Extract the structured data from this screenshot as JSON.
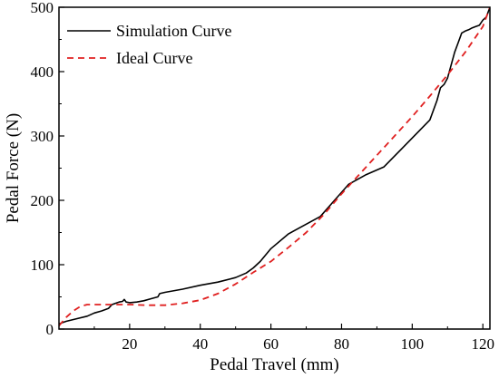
{
  "chart_data": {
    "type": "line",
    "title": "",
    "xlabel": "Pedal Travel (mm)",
    "ylabel": "Pedal Force (N)",
    "xlim": [
      0,
      122
    ],
    "ylim": [
      0,
      500
    ],
    "xticks": [
      20,
      40,
      60,
      80,
      100,
      120
    ],
    "yticks": [
      0,
      100,
      200,
      300,
      400,
      500
    ],
    "grid": false,
    "legend_position": "top-left",
    "series": [
      {
        "name": "Simulation Curve",
        "color": "#000000",
        "style": "solid",
        "x": [
          0,
          2,
          5,
          8,
          10,
          12,
          14,
          15,
          17,
          18,
          18.5,
          19,
          20,
          22,
          24,
          26,
          28,
          28.5,
          30,
          35,
          40,
          45,
          50,
          53,
          55,
          57,
          60,
          65,
          70,
          74,
          78,
          82,
          87,
          92,
          97,
          102,
          105,
          107,
          108,
          109,
          110,
          111,
          112,
          113,
          114,
          115,
          116,
          117,
          118,
          119,
          120,
          121,
          122
        ],
        "y": [
          8,
          12,
          16,
          20,
          25,
          28,
          32,
          38,
          42,
          43,
          46,
          42,
          41,
          42,
          44,
          47,
          50,
          55,
          57,
          62,
          68,
          73,
          80,
          87,
          95,
          105,
          125,
          148,
          163,
          175,
          200,
          225,
          240,
          252,
          280,
          308,
          325,
          355,
          375,
          380,
          390,
          410,
          430,
          445,
          460,
          463,
          465,
          468,
          470,
          472,
          480,
          485,
          500
        ]
      },
      {
        "name": "Ideal Curve",
        "color": "#e02020",
        "style": "dashed",
        "x": [
          0,
          2,
          4,
          6,
          8,
          10,
          15,
          20,
          25,
          30,
          35,
          40,
          45,
          50,
          55,
          60,
          65,
          70,
          75,
          80,
          85,
          90,
          95,
          100,
          105,
          110,
          115,
          120,
          122
        ],
        "y": [
          5,
          18,
          28,
          35,
          38,
          38,
          38,
          38,
          37,
          37,
          40,
          45,
          55,
          70,
          88,
          105,
          127,
          150,
          178,
          210,
          240,
          270,
          300,
          330,
          362,
          395,
          430,
          470,
          500
        ]
      }
    ]
  }
}
